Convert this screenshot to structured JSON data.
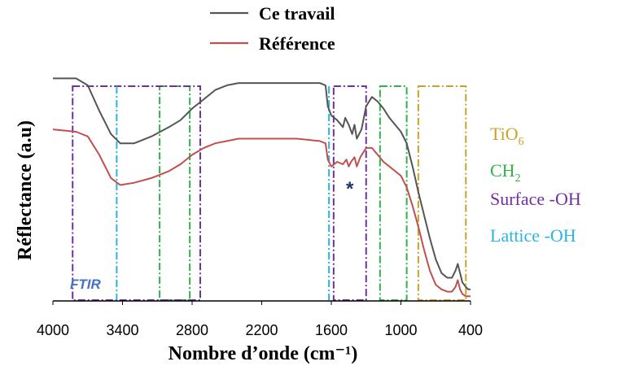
{
  "chart_data": {
    "type": "line",
    "xlabel": "Nombre d’onde (cm⁻¹)",
    "ylabel": "Réflectance (a.u)",
    "x_reversed": true,
    "xlim": [
      4000,
      400
    ],
    "ylim": [
      0,
      1
    ],
    "x_ticks": [
      4000,
      3400,
      2800,
      2200,
      1600,
      1000,
      400
    ],
    "x_tick_labels": [
      "4000",
      "3400",
      "2800",
      "2200",
      "1600",
      "1000",
      "400"
    ],
    "grid": false,
    "legend_position": "top-center",
    "series": [
      {
        "name": "Ce travail",
        "color": "#555555",
        "points": [
          [
            4000,
            0.96
          ],
          [
            3800,
            0.96
          ],
          [
            3700,
            0.93
          ],
          [
            3600,
            0.82
          ],
          [
            3500,
            0.72
          ],
          [
            3420,
            0.68
          ],
          [
            3300,
            0.68
          ],
          [
            3150,
            0.71
          ],
          [
            3000,
            0.75
          ],
          [
            2900,
            0.78
          ],
          [
            2800,
            0.83
          ],
          [
            2700,
            0.87
          ],
          [
            2600,
            0.91
          ],
          [
            2500,
            0.93
          ],
          [
            2400,
            0.94
          ],
          [
            2200,
            0.94
          ],
          [
            1900,
            0.94
          ],
          [
            1700,
            0.94
          ],
          [
            1650,
            0.93
          ],
          [
            1630,
            0.84
          ],
          [
            1600,
            0.8
          ],
          [
            1550,
            0.78
          ],
          [
            1500,
            0.75
          ],
          [
            1480,
            0.79
          ],
          [
            1450,
            0.76
          ],
          [
            1420,
            0.72
          ],
          [
            1400,
            0.76
          ],
          [
            1380,
            0.7
          ],
          [
            1340,
            0.74
          ],
          [
            1300,
            0.84
          ],
          [
            1250,
            0.88
          ],
          [
            1200,
            0.86
          ],
          [
            1150,
            0.83
          ],
          [
            1100,
            0.79
          ],
          [
            1050,
            0.76
          ],
          [
            1000,
            0.73
          ],
          [
            950,
            0.68
          ],
          [
            900,
            0.58
          ],
          [
            850,
            0.47
          ],
          [
            800,
            0.37
          ],
          [
            750,
            0.27
          ],
          [
            700,
            0.18
          ],
          [
            650,
            0.12
          ],
          [
            600,
            0.1
          ],
          [
            560,
            0.1
          ],
          [
            530,
            0.13
          ],
          [
            510,
            0.16
          ],
          [
            490,
            0.12
          ],
          [
            470,
            0.08
          ],
          [
            440,
            0.06
          ],
          [
            420,
            0.05
          ],
          [
            400,
            0.05
          ]
        ]
      },
      {
        "name": "Référence",
        "color": "#c0504d",
        "points": [
          [
            4000,
            0.74
          ],
          [
            3800,
            0.73
          ],
          [
            3700,
            0.71
          ],
          [
            3600,
            0.63
          ],
          [
            3500,
            0.53
          ],
          [
            3420,
            0.5
          ],
          [
            3300,
            0.51
          ],
          [
            3150,
            0.53
          ],
          [
            3000,
            0.56
          ],
          [
            2900,
            0.59
          ],
          [
            2800,
            0.63
          ],
          [
            2700,
            0.66
          ],
          [
            2600,
            0.68
          ],
          [
            2500,
            0.69
          ],
          [
            2400,
            0.7
          ],
          [
            2200,
            0.7
          ],
          [
            1900,
            0.7
          ],
          [
            1700,
            0.69
          ],
          [
            1650,
            0.68
          ],
          [
            1630,
            0.61
          ],
          [
            1600,
            0.58
          ],
          [
            1550,
            0.6
          ],
          [
            1500,
            0.59
          ],
          [
            1470,
            0.61
          ],
          [
            1450,
            0.58
          ],
          [
            1430,
            0.6
          ],
          [
            1400,
            0.62
          ],
          [
            1380,
            0.58
          ],
          [
            1350,
            0.62
          ],
          [
            1300,
            0.66
          ],
          [
            1250,
            0.66
          ],
          [
            1200,
            0.63
          ],
          [
            1150,
            0.6
          ],
          [
            1100,
            0.58
          ],
          [
            1050,
            0.56
          ],
          [
            1000,
            0.54
          ],
          [
            950,
            0.49
          ],
          [
            900,
            0.41
          ],
          [
            850,
            0.32
          ],
          [
            800,
            0.22
          ],
          [
            750,
            0.13
          ],
          [
            700,
            0.07
          ],
          [
            650,
            0.05
          ],
          [
            600,
            0.04
          ],
          [
            560,
            0.04
          ],
          [
            530,
            0.06
          ],
          [
            510,
            0.09
          ],
          [
            490,
            0.05
          ],
          [
            470,
            0.03
          ],
          [
            440,
            0.02
          ],
          [
            420,
            0.02
          ],
          [
            400,
            0.02
          ]
        ]
      }
    ],
    "regions": [
      {
        "label": "TiO6",
        "color": "#c9a227",
        "ranges": [
          [
            850,
            440
          ]
        ]
      },
      {
        "label": "CH2",
        "color": "#2fb34a",
        "ranges": [
          [
            3080,
            2820
          ],
          [
            1180,
            950
          ]
        ]
      },
      {
        "label": "Surface -OH",
        "color": "#7030a0",
        "ranges": [
          [
            3830,
            2730
          ],
          [
            1580,
            1300
          ]
        ]
      },
      {
        "label": "Lattice -OH",
        "color": "#28b4e6",
        "ranges": [
          [
            3450,
            3450
          ],
          [
            1620,
            1620
          ]
        ]
      }
    ],
    "annotations": [
      {
        "text": "FTIR",
        "color": "#4472c4"
      },
      {
        "text": "*",
        "color": "#1f3864"
      }
    ]
  }
}
